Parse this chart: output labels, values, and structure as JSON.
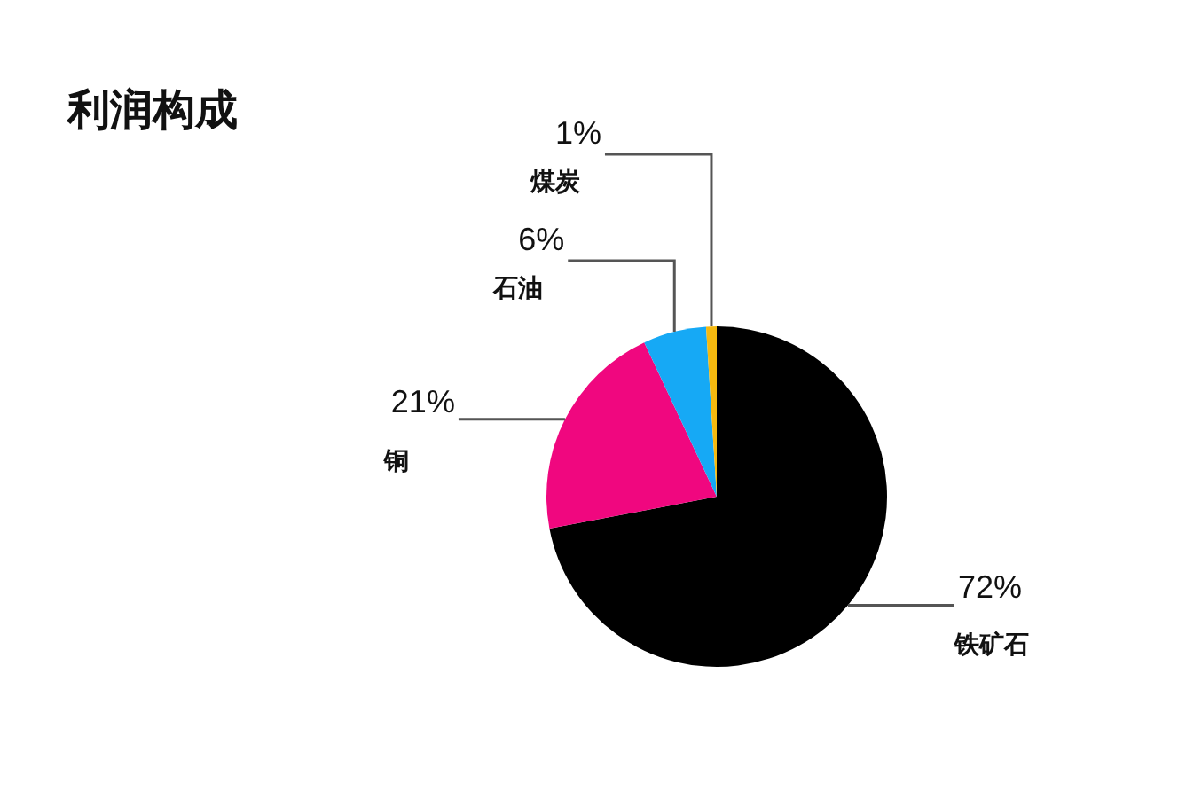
{
  "chart_data": {
    "type": "pie",
    "title": "利润构成",
    "categories": [
      "铁矿石",
      "铜",
      "石油",
      "煤炭"
    ],
    "values": [
      72,
      21,
      6,
      1
    ],
    "value_labels": [
      "72%",
      "21%",
      "6%",
      "1%"
    ],
    "colors": [
      "#000000",
      "#f0077f",
      "#16a9f5",
      "#f5b90f"
    ]
  }
}
